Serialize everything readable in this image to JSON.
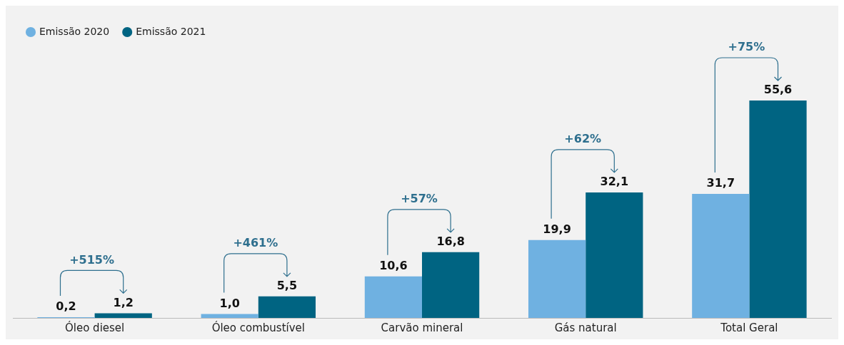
{
  "chart_data": {
    "type": "bar",
    "categories": [
      "Óleo diesel",
      "Óleo combustível",
      "Carvão mineral",
      "Gás natural",
      "Total Geral"
    ],
    "series": [
      {
        "name": "Emissão 2020",
        "color": "#6fb1e1",
        "values": [
          0.2,
          1.0,
          10.6,
          19.9,
          31.7
        ],
        "value_labels": [
          "0,2",
          "1,0",
          "10,6",
          "19,9",
          "31,7"
        ]
      },
      {
        "name": "Emissão 2021",
        "color": "#006482",
        "values": [
          1.2,
          5.5,
          16.8,
          32.1,
          55.6
        ],
        "value_labels": [
          "1,2",
          "5,5",
          "16,8",
          "32,1",
          "55,6"
        ]
      }
    ],
    "annotations": [
      "+515%",
      "+461%",
      "+57%",
      "+62%",
      "+75%"
    ],
    "legend": "top left",
    "grid": false
  }
}
